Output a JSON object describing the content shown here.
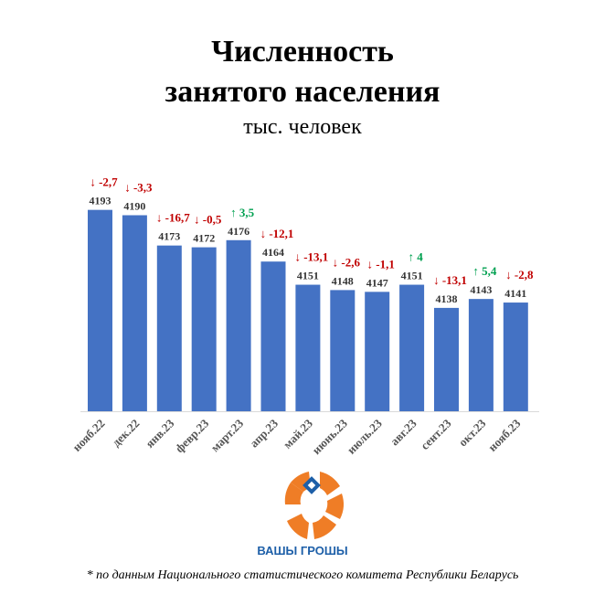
{
  "header": {
    "title_line1": "Численность",
    "title_line2": "занятого населения",
    "subtitle": "тыс. человек"
  },
  "logo": {
    "name": "ВАШЫ ГРОШЫ",
    "colors": {
      "orange": "#ef7d26",
      "blue": "#1d5fa8"
    }
  },
  "footnote": "* по данным Национального статистического комитета Республики Беларусь",
  "colors": {
    "bar": "#4472c4",
    "down": "#c00000",
    "up": "#00a050"
  },
  "chart_data": {
    "type": "bar",
    "categories": [
      "нояб.22",
      "дек.22",
      "янв.23",
      "февр.23",
      "март.23",
      "апр.23",
      "май.23",
      "июнь.23",
      "июль.23",
      "авг.23",
      "сент.23",
      "окт.23",
      "нояб.23"
    ],
    "values": [
      4193,
      4190,
      4173,
      4172,
      4176,
      4164,
      4151,
      4148,
      4147,
      4151,
      4138,
      4143,
      4141
    ],
    "changes": [
      "↓ -2,7",
      "↓ -3,3",
      "↓ -16,7",
      "↓ -0,5",
      "↑ 3,5",
      "↓ -12,1",
      "↓ -13,1",
      "↓ -2,6",
      "↓ -1,1",
      "↑ 4",
      "↓ -13,1",
      "↑ 5,4",
      "↓ -2,8"
    ],
    "change_dir": [
      "down",
      "down",
      "down",
      "down",
      "up",
      "down",
      "down",
      "down",
      "down",
      "up",
      "down",
      "up",
      "down"
    ],
    "ylim": [
      4080,
      4200
    ]
  }
}
